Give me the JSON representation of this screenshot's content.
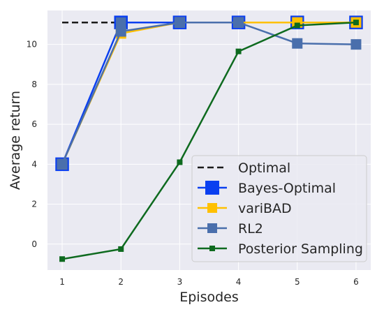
{
  "chart_data": {
    "type": "line",
    "title": "",
    "xlabel": "Episodes",
    "ylabel": "Average return",
    "x": [
      1,
      2,
      3,
      4,
      5,
      6
    ],
    "x_ticks": [
      "1",
      "2",
      "3",
      "4",
      "5",
      "6"
    ],
    "y_ticks": [
      "0",
      "2",
      "4",
      "6",
      "8",
      "10"
    ],
    "xlim": [
      0.75,
      6.25
    ],
    "ylim": [
      -1.3,
      11.7
    ],
    "grid": true,
    "legend_position": "lower-right",
    "background": "#eaeaf2",
    "series": [
      {
        "name": "Optimal",
        "x": [
          1,
          2,
          3,
          4,
          5,
          6
        ],
        "values": [
          11.1,
          11.1,
          11.1,
          11.1,
          11.1,
          11.1
        ],
        "color": "#1a1a1a",
        "style": "dashed",
        "marker": "none"
      },
      {
        "name": "Bayes-Optimal",
        "x": [
          1,
          2,
          3,
          4,
          5,
          6
        ],
        "values": [
          4.0,
          11.1,
          11.1,
          11.1,
          11.1,
          11.1
        ],
        "color": "#0a3ff0",
        "style": "solid",
        "marker": "square-large"
      },
      {
        "name": "variBAD",
        "x": [
          1,
          2,
          3,
          4,
          5,
          6
        ],
        "values": [
          4.0,
          10.55,
          11.1,
          11.1,
          11.1,
          11.1
        ],
        "color": "#ffc000",
        "style": "solid",
        "marker": "square"
      },
      {
        "name": "RL2",
        "x": [
          1,
          2,
          3,
          4,
          5,
          6
        ],
        "values": [
          4.0,
          10.65,
          11.1,
          11.1,
          10.05,
          10.0
        ],
        "color": "#4a6fac",
        "style": "solid",
        "marker": "square"
      },
      {
        "name": "Posterior Sampling",
        "x": [
          1,
          2,
          3,
          4,
          5,
          6
        ],
        "values": [
          -0.75,
          -0.25,
          4.1,
          9.65,
          10.95,
          11.1
        ],
        "color": "#0e6a1f",
        "style": "solid",
        "marker": "square-small"
      }
    ]
  }
}
